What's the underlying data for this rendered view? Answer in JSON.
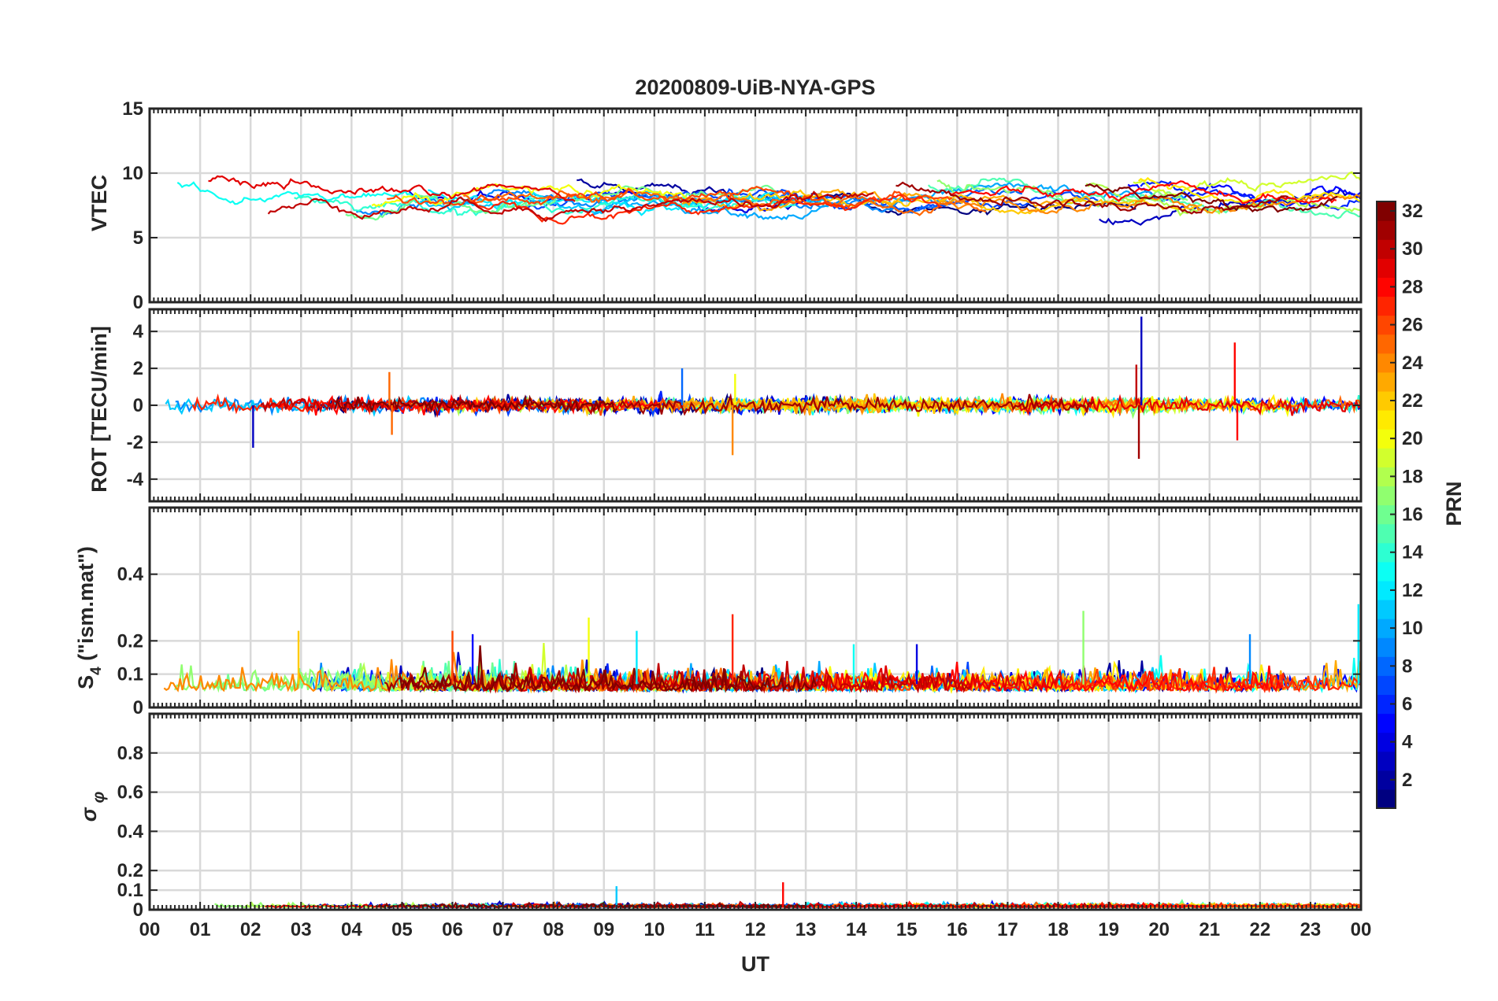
{
  "figure_title": "20200809-UiB-NYA-GPS",
  "colorbar": {
    "label": "PRN",
    "min": 1,
    "max": 32,
    "ticks": [
      2,
      4,
      6,
      8,
      10,
      12,
      14,
      16,
      18,
      20,
      22,
      24,
      26,
      28,
      30,
      32
    ],
    "tick_labels": [
      "2",
      "4",
      "6",
      "8",
      "10",
      "12",
      "14",
      "16",
      "18",
      "20",
      "22",
      "24",
      "26",
      "28",
      "30",
      "32"
    ],
    "colormap": "jet"
  },
  "chart_data": [
    {
      "type": "line",
      "id": "vtec",
      "title": "20200809-UiB-NYA-GPS",
      "ylabel": "VTEC",
      "xlabel": "",
      "xlim": [
        0,
        24
      ],
      "ylim": [
        0,
        15
      ],
      "yticks": [
        0,
        5,
        10,
        15
      ],
      "ytick_labels": [
        "0",
        "5",
        "10",
        "15"
      ],
      "grid": true,
      "baseline": 7.8,
      "series_note_count": 32
    },
    {
      "type": "line",
      "id": "rot",
      "ylabel": "ROT [TECU/min]",
      "xlabel": "",
      "xlim": [
        0,
        24
      ],
      "ylim": [
        -5.2,
        5.2
      ],
      "yticks": [
        -4,
        -2,
        0,
        2,
        4
      ],
      "ytick_labels": [
        "-4",
        "-2",
        "0",
        "2",
        "4"
      ],
      "grid": true,
      "spikes": [
        {
          "x": 2.05,
          "y": -2.3,
          "prn": 3
        },
        {
          "x": 4.75,
          "y": 1.8,
          "prn": 25
        },
        {
          "x": 4.8,
          "y": -1.6,
          "prn": 25
        },
        {
          "x": 10.55,
          "y": 2.0,
          "prn": 8
        },
        {
          "x": 11.55,
          "y": -2.7,
          "prn": 24
        },
        {
          "x": 11.6,
          "y": 1.7,
          "prn": 20
        },
        {
          "x": 19.55,
          "y": 2.2,
          "prn": 30
        },
        {
          "x": 19.6,
          "y": -2.9,
          "prn": 31
        },
        {
          "x": 19.65,
          "y": 4.8,
          "prn": 3
        },
        {
          "x": 21.5,
          "y": 3.4,
          "prn": 28
        },
        {
          "x": 21.55,
          "y": -1.9,
          "prn": 28
        }
      ]
    },
    {
      "type": "line",
      "id": "s4",
      "ylabel": "S4 (\"ism.mat\")",
      "xlabel": "",
      "xlim": [
        0,
        24
      ],
      "ylim": [
        0,
        0.6
      ],
      "yticks": [
        0,
        0.1,
        0.2,
        0.4
      ],
      "ytick_labels": [
        "0",
        "0.1",
        "0.2",
        "0.4"
      ],
      "grid": true,
      "spikes": [
        {
          "x": 2.95,
          "y": 0.23,
          "prn": 22
        },
        {
          "x": 6.0,
          "y": 0.23,
          "prn": 26
        },
        {
          "x": 6.4,
          "y": 0.22,
          "prn": 5
        },
        {
          "x": 8.7,
          "y": 0.27,
          "prn": 20
        },
        {
          "x": 9.65,
          "y": 0.23,
          "prn": 12
        },
        {
          "x": 11.55,
          "y": 0.28,
          "prn": 27
        },
        {
          "x": 13.95,
          "y": 0.19,
          "prn": 13
        },
        {
          "x": 15.2,
          "y": 0.19,
          "prn": 4
        },
        {
          "x": 18.5,
          "y": 0.29,
          "prn": 17
        },
        {
          "x": 21.8,
          "y": 0.22,
          "prn": 9
        },
        {
          "x": 23.95,
          "y": 0.31,
          "prn": 12
        }
      ]
    },
    {
      "type": "line",
      "id": "sigma_phi",
      "ylabel": "σφ",
      "xlabel": "UT",
      "xlim": [
        0,
        24
      ],
      "ylim": [
        0,
        1
      ],
      "yticks": [
        0,
        0.1,
        0.2,
        0.4,
        0.6,
        0.8
      ],
      "ytick_labels": [
        "0",
        "0.1",
        "0.2",
        "0.4",
        "0.6",
        "0.8"
      ],
      "xticks": [
        0,
        1,
        2,
        3,
        4,
        5,
        6,
        7,
        8,
        9,
        10,
        11,
        12,
        13,
        14,
        15,
        16,
        17,
        18,
        19,
        20,
        21,
        22,
        23,
        24
      ],
      "xtick_labels": [
        "00",
        "01",
        "02",
        "03",
        "04",
        "05",
        "06",
        "07",
        "08",
        "09",
        "10",
        "11",
        "12",
        "13",
        "14",
        "15",
        "16",
        "17",
        "18",
        "19",
        "20",
        "21",
        "22",
        "23",
        "00"
      ],
      "grid": true,
      "spikes": [
        {
          "x": 9.25,
          "y": 0.12,
          "prn": 11
        },
        {
          "x": 12.55,
          "y": 0.14,
          "prn": 28
        }
      ]
    }
  ]
}
